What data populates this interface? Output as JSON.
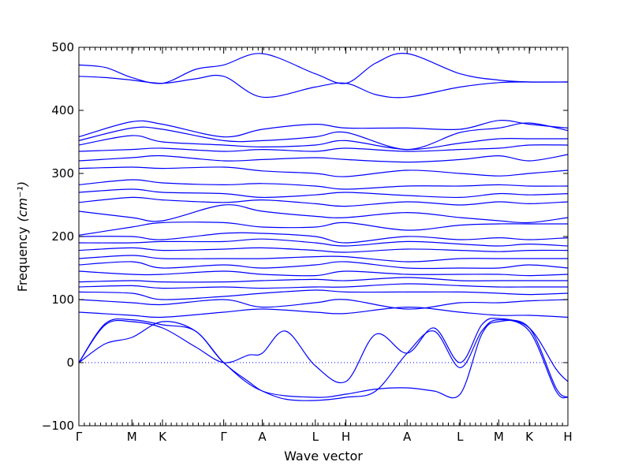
{
  "chart_data": {
    "type": "line",
    "xlabel": "Wave vector",
    "ylabel": "Frequency",
    "ylabel_unit": "(cm⁻¹)",
    "ylim": [
      -100,
      500
    ],
    "yticks": [
      -100,
      0,
      100,
      200,
      300,
      400,
      500
    ],
    "x_high_symmetry": [
      {
        "label": "Γ",
        "x": 0.0
      },
      {
        "label": "M",
        "x": 1.0
      },
      {
        "label": "K",
        "x": 1.577
      },
      {
        "label": "Γ",
        "x": 2.732
      },
      {
        "label": "A",
        "x": 3.46
      },
      {
        "label": "L",
        "x": 4.46
      },
      {
        "label": "H",
        "x": 5.037
      },
      {
        "label": "A",
        "x": 6.192
      },
      {
        "label": "L",
        "x": 7.192
      },
      {
        "label": "M",
        "x": 7.92
      },
      {
        "label": "K",
        "x": 8.497
      },
      {
        "label": "H",
        "x": 9.225
      }
    ],
    "xlim": [
      0,
      9.225
    ],
    "zero_line": true,
    "line_color": "#0000ff",
    "bands": [
      {
        "x": [
          0,
          0.5,
          1.0,
          1.577,
          2.2,
          2.732,
          3.46,
          4.46,
          5.037,
          5.6,
          6.192,
          7.192,
          7.92,
          8.497,
          9.225
        ],
        "y": [
          472,
          468,
          452,
          443,
          465,
          472,
          490,
          458,
          443,
          475,
          490,
          458,
          448,
          445,
          445
        ]
      },
      {
        "x": [
          0,
          0.5,
          1.0,
          1.577,
          2.2,
          2.732,
          3.46,
          4.46,
          5.037,
          5.6,
          6.192,
          7.192,
          7.92,
          8.497,
          9.225
        ],
        "y": [
          454,
          452,
          448,
          443,
          450,
          454,
          421,
          437,
          443,
          425,
          421,
          437,
          444,
          445,
          445
        ]
      },
      {
        "x": [
          0,
          1.0,
          1.577,
          2.732,
          3.46,
          4.46,
          5.037,
          6.192,
          7.192,
          7.92,
          8.497,
          9.225
        ],
        "y": [
          358,
          382,
          378,
          358,
          370,
          378,
          372,
          372,
          370,
          384,
          378,
          372
        ]
      },
      {
        "x": [
          0,
          1.0,
          1.577,
          2.732,
          3.46,
          4.46,
          5.037,
          6.192,
          7.192,
          7.92,
          8.497,
          9.225
        ],
        "y": [
          352,
          372,
          370,
          352,
          352,
          358,
          365,
          338,
          365,
          372,
          380,
          368
        ]
      },
      {
        "x": [
          0,
          1.0,
          1.577,
          2.732,
          3.46,
          4.46,
          5.037,
          6.192,
          7.192,
          7.92,
          8.497,
          9.225
        ],
        "y": [
          345,
          360,
          350,
          345,
          342,
          345,
          352,
          338,
          348,
          355,
          355,
          355
        ]
      },
      {
        "x": [
          0,
          1.0,
          1.577,
          2.732,
          3.46,
          4.46,
          5.037,
          6.192,
          7.192,
          7.92,
          8.497,
          9.225
        ],
        "y": [
          335,
          338,
          340,
          335,
          338,
          335,
          340,
          335,
          338,
          340,
          345,
          345
        ]
      },
      {
        "x": [
          0,
          1.0,
          1.577,
          2.732,
          3.46,
          4.46,
          5.037,
          6.192,
          7.192,
          7.92,
          8.497,
          9.225
        ],
        "y": [
          320,
          325,
          328,
          320,
          322,
          325,
          322,
          318,
          322,
          328,
          320,
          330
        ]
      },
      {
        "x": [
          0,
          1.0,
          1.577,
          2.732,
          3.46,
          4.46,
          5.037,
          6.192,
          7.192,
          7.92,
          8.497,
          9.225
        ],
        "y": [
          308,
          310,
          308,
          310,
          304,
          300,
          295,
          305,
          300,
          296,
          300,
          305
        ]
      },
      {
        "x": [
          0,
          1.0,
          1.577,
          2.732,
          3.46,
          4.46,
          5.037,
          6.192,
          7.192,
          7.92,
          8.497,
          9.225
        ],
        "y": [
          282,
          290,
          285,
          282,
          284,
          280,
          275,
          280,
          280,
          282,
          280,
          280
        ]
      },
      {
        "x": [
          0,
          1.0,
          1.577,
          2.732,
          3.46,
          4.46,
          5.037,
          6.192,
          7.192,
          7.92,
          8.497,
          9.225
        ],
        "y": [
          270,
          275,
          270,
          268,
          262,
          266,
          270,
          265,
          262,
          268,
          266,
          268
        ]
      },
      {
        "x": [
          0,
          1.0,
          1.577,
          2.732,
          3.46,
          4.46,
          5.037,
          6.192,
          7.192,
          7.92,
          8.497,
          9.225
        ],
        "y": [
          254,
          262,
          258,
          254,
          258,
          252,
          248,
          255,
          250,
          255,
          252,
          255
        ]
      },
      {
        "x": [
          0,
          1.0,
          1.577,
          2.732,
          3.46,
          4.46,
          5.037,
          6.192,
          7.192,
          7.92,
          8.497,
          9.225
        ],
        "y": [
          240,
          230,
          225,
          250,
          240,
          232,
          230,
          238,
          230,
          225,
          222,
          230
        ]
      },
      {
        "x": [
          0,
          1.0,
          1.577,
          2.732,
          3.46,
          4.46,
          5.037,
          6.192,
          7.192,
          7.92,
          8.497,
          9.225
        ],
        "y": [
          202,
          215,
          222,
          222,
          215,
          215,
          222,
          210,
          218,
          220,
          220,
          220
        ]
      },
      {
        "x": [
          0,
          1.0,
          1.577,
          2.732,
          3.46,
          4.46,
          5.037,
          6.192,
          7.192,
          7.92,
          8.497,
          9.225
        ],
        "y": [
          200,
          200,
          195,
          205,
          205,
          200,
          190,
          200,
          195,
          198,
          195,
          198
        ]
      },
      {
        "x": [
          0,
          1.0,
          1.577,
          2.732,
          3.46,
          4.46,
          5.037,
          6.192,
          7.192,
          7.92,
          8.497,
          9.225
        ],
        "y": [
          190,
          190,
          192,
          192,
          196,
          190,
          185,
          192,
          188,
          185,
          188,
          185
        ]
      },
      {
        "x": [
          0,
          1.0,
          1.577,
          2.732,
          3.46,
          4.46,
          5.037,
          6.192,
          7.192,
          7.92,
          8.497,
          9.225
        ],
        "y": [
          178,
          182,
          178,
          180,
          182,
          178,
          175,
          180,
          178,
          176,
          178,
          178
        ]
      },
      {
        "x": [
          0,
          1.0,
          1.577,
          2.732,
          3.46,
          4.46,
          5.037,
          6.192,
          7.192,
          7.92,
          8.497,
          9.225
        ],
        "y": [
          165,
          170,
          165,
          165,
          165,
          168,
          168,
          160,
          165,
          165,
          165,
          165
        ]
      },
      {
        "x": [
          0,
          1.0,
          1.577,
          2.732,
          3.46,
          4.46,
          5.037,
          6.192,
          7.192,
          7.92,
          8.497,
          9.225
        ],
        "y": [
          155,
          160,
          150,
          155,
          150,
          155,
          160,
          150,
          150,
          150,
          155,
          150
        ]
      },
      {
        "x": [
          0,
          1.0,
          1.577,
          2.732,
          3.46,
          4.46,
          5.037,
          6.192,
          7.192,
          7.92,
          8.497,
          9.225
        ],
        "y": [
          145,
          140,
          140,
          145,
          140,
          138,
          145,
          140,
          140,
          140,
          138,
          140
        ]
      },
      {
        "x": [
          0,
          1.0,
          1.577,
          2.732,
          3.46,
          4.46,
          5.037,
          6.192,
          7.192,
          7.92,
          8.497,
          9.225
        ],
        "y": [
          128,
          130,
          128,
          128,
          130,
          132,
          130,
          135,
          130,
          130,
          130,
          130
        ]
      },
      {
        "x": [
          0,
          1.0,
          1.577,
          2.732,
          3.46,
          4.46,
          5.037,
          6.192,
          7.192,
          7.92,
          8.497,
          9.225
        ],
        "y": [
          120,
          122,
          118,
          120,
          118,
          120,
          120,
          125,
          122,
          120,
          120,
          120
        ]
      },
      {
        "x": [
          0,
          1.0,
          1.577,
          2.732,
          3.46,
          4.46,
          5.037,
          6.192,
          7.192,
          7.92,
          8.497,
          9.225
        ],
        "y": [
          112,
          110,
          100,
          105,
          110,
          115,
          112,
          112,
          112,
          110,
          108,
          110
        ]
      },
      {
        "x": [
          0,
          1.0,
          1.577,
          2.732,
          3.46,
          4.46,
          5.037,
          6.192,
          7.192,
          7.92,
          8.497,
          9.225
        ],
        "y": [
          100,
          95,
          92,
          100,
          88,
          95,
          100,
          85,
          95,
          95,
          98,
          100
        ]
      },
      {
        "x": [
          0,
          1.0,
          1.577,
          2.732,
          3.46,
          4.46,
          5.037,
          6.192,
          7.192,
          7.92,
          8.497,
          9.225
        ],
        "y": [
          80,
          75,
          72,
          80,
          85,
          80,
          78,
          88,
          80,
          75,
          75,
          72
        ]
      },
      {
        "x": [
          0,
          0.5,
          1.0,
          1.577,
          2.2,
          2.732,
          3.2,
          3.46,
          3.9,
          4.46,
          5.037,
          5.6,
          6.192,
          6.7,
          7.192,
          7.6,
          7.92,
          8.497,
          9.0,
          9.225
        ],
        "y": [
          0,
          60,
          65,
          55,
          25,
          0,
          12,
          15,
          50,
          -5,
          -30,
          45,
          15,
          55,
          0,
          60,
          70,
          55,
          -10,
          -30
        ]
      },
      {
        "x": [
          0,
          0.5,
          1.0,
          1.577,
          2.2,
          2.732,
          3.2,
          3.46,
          3.9,
          4.46,
          5.037,
          5.6,
          6.192,
          6.7,
          7.192,
          7.6,
          7.92,
          8.497,
          9.0,
          9.225
        ],
        "y": [
          0,
          30,
          40,
          65,
          50,
          0,
          -30,
          -45,
          -58,
          -60,
          -55,
          -45,
          15,
          50,
          -8,
          50,
          68,
          50,
          -45,
          -55
        ]
      },
      {
        "x": [
          0,
          0.5,
          1.0,
          1.577,
          2.2,
          2.732,
          3.46,
          4.46,
          5.037,
          5.6,
          6.192,
          6.7,
          7.192,
          7.6,
          7.92,
          8.497,
          9.0,
          9.225
        ],
        "y": [
          0,
          62,
          68,
          60,
          50,
          0,
          -45,
          -55,
          -50,
          -42,
          -40,
          -45,
          -50,
          45,
          65,
          55,
          -40,
          -55
        ]
      }
    ]
  }
}
